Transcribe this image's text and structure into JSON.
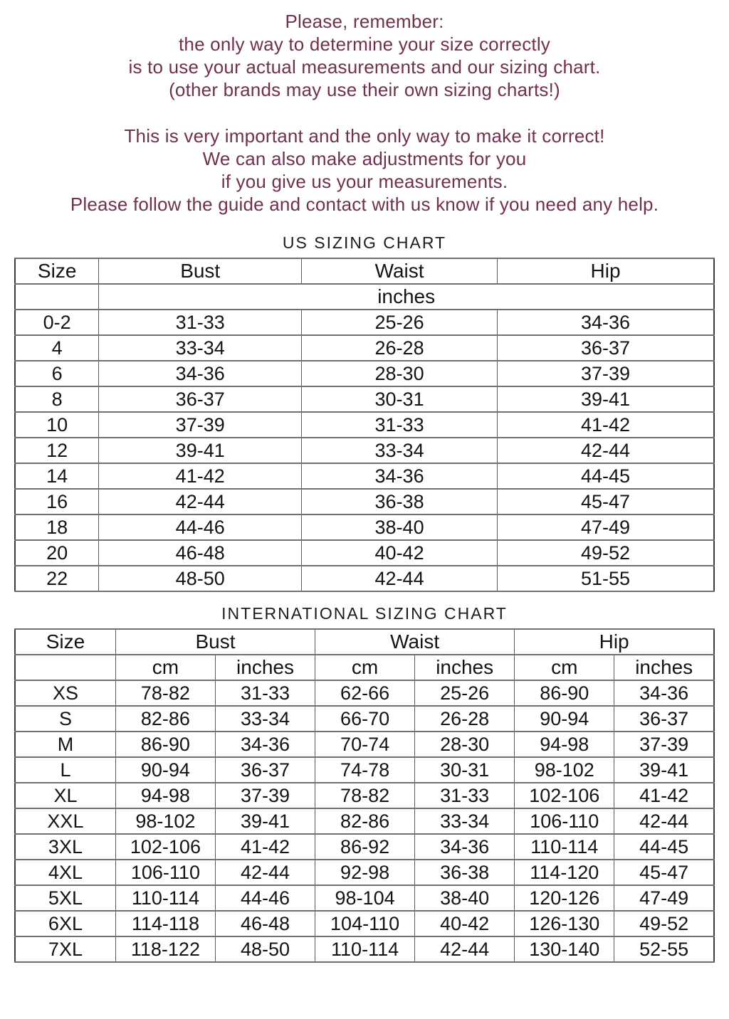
{
  "page": {
    "background": "#ffffff",
    "intro_text_color": "#703050",
    "table_text_color": "#141414",
    "border_color": "#5c5c5c"
  },
  "intro": {
    "block1": [
      "Please, remember:",
      "the only way to determine your size correctly",
      "is to use your actual measurements and our sizing chart.",
      "(other brands may use their own sizing charts!)"
    ],
    "block2": [
      "This is very important and the only way to make it correct!",
      "We can also make adjustments for you",
      "if you give us your measurements.",
      "Please follow the guide and contact with us know if you need any help."
    ]
  },
  "us_chart": {
    "title": "US SIZING CHART",
    "columns": [
      "Size",
      "Bust",
      "Waist",
      "Hip"
    ],
    "units_label": "inches",
    "rows": [
      [
        "0-2",
        "31-33",
        "25-26",
        "34-36"
      ],
      [
        "4",
        "33-34",
        "26-28",
        "36-37"
      ],
      [
        "6",
        "34-36",
        "28-30",
        "37-39"
      ],
      [
        "8",
        "36-37",
        "30-31",
        "39-41"
      ],
      [
        "10",
        "37-39",
        "31-33",
        "41-42"
      ],
      [
        "12",
        "39-41",
        "33-34",
        "42-44"
      ],
      [
        "14",
        "41-42",
        "34-36",
        "44-45"
      ],
      [
        "16",
        "42-44",
        "36-38",
        "45-47"
      ],
      [
        "18",
        "44-46",
        "38-40",
        "47-49"
      ],
      [
        "20",
        "46-48",
        "40-42",
        "49-52"
      ],
      [
        "22",
        "48-50",
        "42-44",
        "51-55"
      ]
    ]
  },
  "intl_chart": {
    "title": "INTERNATIONAL SIZING CHART",
    "columns": [
      "Size",
      "Bust",
      "Waist",
      "Hip"
    ],
    "unit_labels": [
      "cm",
      "inches",
      "cm",
      "inches",
      "cm",
      "inches"
    ],
    "rows": [
      [
        "XS",
        "78-82",
        "31-33",
        "62-66",
        "25-26",
        "86-90",
        "34-36"
      ],
      [
        "S",
        "82-86",
        "33-34",
        "66-70",
        "26-28",
        "90-94",
        "36-37"
      ],
      [
        "M",
        "86-90",
        "34-36",
        "70-74",
        "28-30",
        "94-98",
        "37-39"
      ],
      [
        "L",
        "90-94",
        "36-37",
        "74-78",
        "30-31",
        "98-102",
        "39-41"
      ],
      [
        "XL",
        "94-98",
        "37-39",
        "78-82",
        "31-33",
        "102-106",
        "41-42"
      ],
      [
        "XXL",
        "98-102",
        "39-41",
        "82-86",
        "33-34",
        "106-110",
        "42-44"
      ],
      [
        "3XL",
        "102-106",
        "41-42",
        "86-92",
        "34-36",
        "110-114",
        "44-45"
      ],
      [
        "4XL",
        "106-110",
        "42-44",
        "92-98",
        "36-38",
        "114-120",
        "45-47"
      ],
      [
        "5XL",
        "110-114",
        "44-46",
        "98-104",
        "38-40",
        "120-126",
        "47-49"
      ],
      [
        "6XL",
        "114-118",
        "46-48",
        "104-110",
        "40-42",
        "126-130",
        "49-52"
      ],
      [
        "7XL",
        "118-122",
        "48-50",
        "110-114",
        "42-44",
        "130-140",
        "52-55"
      ]
    ]
  }
}
